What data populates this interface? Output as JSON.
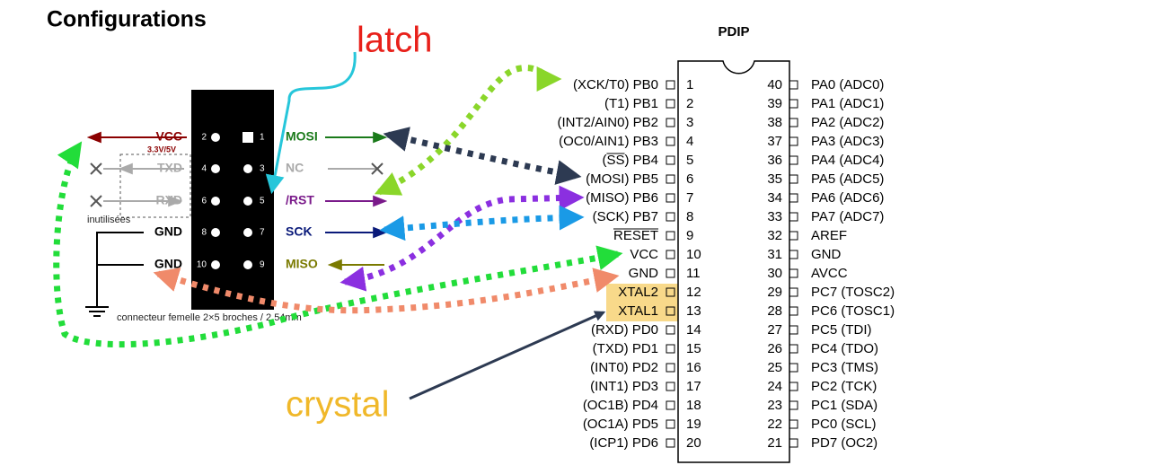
{
  "title": "Configurations",
  "annotations": {
    "latch": "latch",
    "crystal": "crystal"
  },
  "connector": {
    "rows": [
      {
        "left_pin": 2,
        "right_pin": 1,
        "left_signal": "VCC",
        "right_signal": "MOSI"
      },
      {
        "left_pin": 4,
        "right_pin": 3,
        "left_signal": "TXD",
        "right_signal": "NC"
      },
      {
        "left_pin": 6,
        "right_pin": 5,
        "left_signal": "RXD",
        "right_signal": "/RST"
      },
      {
        "left_pin": 8,
        "right_pin": 7,
        "left_signal": "GND",
        "right_signal": "SCK"
      },
      {
        "left_pin": 10,
        "right_pin": 9,
        "left_signal": "GND",
        "right_signal": "MISO"
      }
    ],
    "voltage": "3.3V/5V",
    "unused_note": "inutilisées",
    "caption": "connecteur femelle 2×5 broches / 2.54mm"
  },
  "chip": {
    "package": "PDIP",
    "left_pins": [
      {
        "number": 1,
        "label": "(XCK/T0) PB0"
      },
      {
        "number": 2,
        "label": "(T1) PB1"
      },
      {
        "number": 3,
        "label": "(INT2/AIN0) PB2"
      },
      {
        "number": 4,
        "label": "(OC0/AIN1) PB3"
      },
      {
        "number": 5,
        "label": "(SS) PB4"
      },
      {
        "number": 6,
        "label": "(MOSI) PB5"
      },
      {
        "number": 7,
        "label": "(MISO) PB6"
      },
      {
        "number": 8,
        "label": "(SCK) PB7"
      },
      {
        "number": 9,
        "label": "RESET"
      },
      {
        "number": 10,
        "label": "VCC"
      },
      {
        "number": 11,
        "label": "GND"
      },
      {
        "number": 12,
        "label": "XTAL2"
      },
      {
        "number": 13,
        "label": "XTAL1"
      },
      {
        "number": 14,
        "label": "(RXD) PD0"
      },
      {
        "number": 15,
        "label": "(TXD) PD1"
      },
      {
        "number": 16,
        "label": "(INT0) PD2"
      },
      {
        "number": 17,
        "label": "(INT1) PD3"
      },
      {
        "number": 18,
        "label": "(OC1B) PD4"
      },
      {
        "number": 19,
        "label": "(OC1A) PD5"
      },
      {
        "number": 20,
        "label": "(ICP1) PD6"
      }
    ],
    "right_pins": [
      {
        "number": 40,
        "label": "PA0 (ADC0)"
      },
      {
        "number": 39,
        "label": "PA1 (ADC1)"
      },
      {
        "number": 38,
        "label": "PA2 (ADC2)"
      },
      {
        "number": 37,
        "label": "PA3 (ADC3)"
      },
      {
        "number": 36,
        "label": "PA4 (ADC4)"
      },
      {
        "number": 35,
        "label": "PA5 (ADC5)"
      },
      {
        "number": 34,
        "label": "PA6 (ADC6)"
      },
      {
        "number": 33,
        "label": "PA7 (ADC7)"
      },
      {
        "number": 32,
        "label": "AREF"
      },
      {
        "number": 31,
        "label": "GND"
      },
      {
        "number": 30,
        "label": "AVCC"
      },
      {
        "number": 29,
        "label": "PC7 (TOSC2)"
      },
      {
        "number": 28,
        "label": "PC6 (TOSC1)"
      },
      {
        "number": 27,
        "label": "PC5 (TDI)"
      },
      {
        "number": 26,
        "label": "PC4 (TDO)"
      },
      {
        "number": 25,
        "label": "PC3 (TMS)"
      },
      {
        "number": 24,
        "label": "PC2 (TCK)"
      },
      {
        "number": 23,
        "label": "PC1 (SDA)"
      },
      {
        "number": 22,
        "label": "PC0 (SCL)"
      },
      {
        "number": 21,
        "label": "PD7 (OC2)"
      }
    ]
  }
}
